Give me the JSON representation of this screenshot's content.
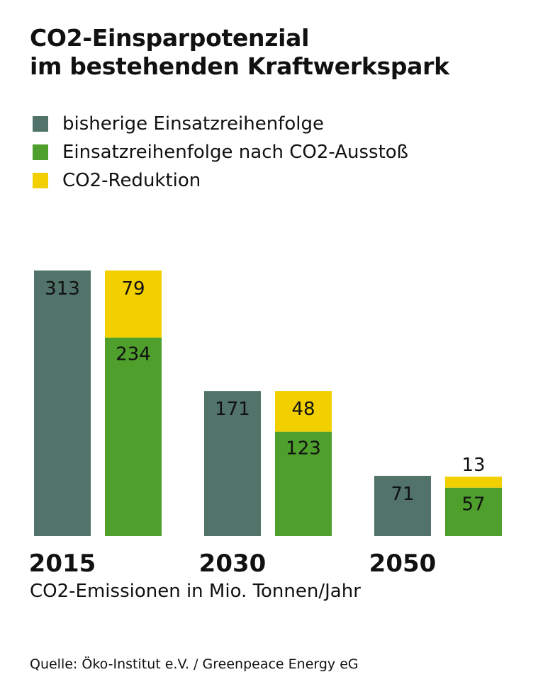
{
  "chart_data": {
    "type": "bar",
    "stacked": true,
    "title": "CO2-Einsparpotenzial im bestehenden Kraftwerkspark",
    "title_lines": [
      "CO2-Einsparpotenzial",
      "im bestehenden Kraftwerkspark"
    ],
    "xlabel": "CO2-Emissionen in Mio. Tonnen/Jahr",
    "categories": [
      "2015",
      "2030",
      "2050"
    ],
    "series": [
      {
        "name": "bisherige Einsatzreihenfolge",
        "color": "#51736a",
        "values": [
          313,
          171,
          71
        ],
        "stack": "a"
      },
      {
        "name": "Einsatzreihenfolge nach CO2-Ausstoß",
        "color": "#4e9f2c",
        "values": [
          234,
          123,
          57
        ],
        "stack": "b"
      },
      {
        "name": "CO2-Reduktion",
        "color": "#f2d000",
        "values": [
          79,
          48,
          13
        ],
        "stack": "b"
      }
    ],
    "ylim": [
      0,
      313
    ],
    "grid": false,
    "legend_position": "top-left",
    "source": "Quelle: Öko-Institut e.V. / Greenpeace Energy eG"
  }
}
